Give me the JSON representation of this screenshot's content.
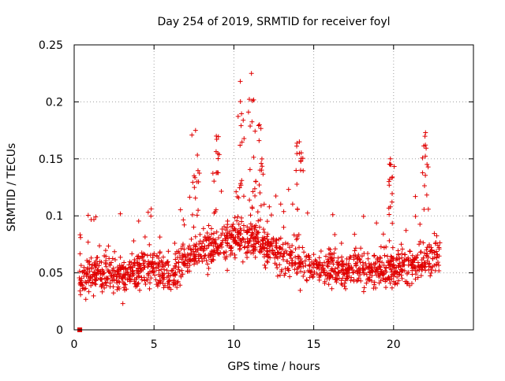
{
  "chart_data": {
    "type": "scatter",
    "title": "Day 254 of 2019, SRMTID for receiver foyl",
    "xlabel": "GPS time / hours",
    "ylabel": "SRMTID / TECUs",
    "xlim": [
      0,
      25
    ],
    "ylim": [
      0,
      0.25
    ],
    "x_ticks": [
      0,
      5,
      10,
      15,
      20
    ],
    "x_tick_labels": [
      "0",
      "5",
      "10",
      "15",
      "20"
    ],
    "y_ticks": [
      0,
      0.05,
      0.1,
      0.15,
      0.2,
      0.25
    ],
    "y_tick_labels": [
      "0",
      "0.05",
      "0.1",
      "0.15",
      "0.2",
      "0.25"
    ],
    "grid": true,
    "marker": "plus",
    "series": [
      {
        "name": "SRMTID",
        "color": "#e00000",
        "x_range_hours": [
          0.3,
          22.9
        ],
        "typical_band": [
          0.02,
          0.09
        ],
        "baseline_by_hour": [
          [
            0.3,
            0.045
          ],
          [
            1,
            0.05
          ],
          [
            2,
            0.052
          ],
          [
            3,
            0.045
          ],
          [
            4,
            0.055
          ],
          [
            5,
            0.055
          ],
          [
            6,
            0.05
          ],
          [
            7,
            0.06
          ],
          [
            8,
            0.07
          ],
          [
            9,
            0.075
          ],
          [
            10,
            0.08
          ],
          [
            11,
            0.08
          ],
          [
            12,
            0.075
          ],
          [
            13,
            0.065
          ],
          [
            14,
            0.06
          ],
          [
            15,
            0.055
          ],
          [
            16,
            0.055
          ],
          [
            17,
            0.05
          ],
          [
            18,
            0.055
          ],
          [
            19,
            0.05
          ],
          [
            20,
            0.055
          ],
          [
            21,
            0.055
          ],
          [
            22,
            0.06
          ],
          [
            22.9,
            0.065
          ]
        ],
        "peaks": [
          {
            "x": 7.6,
            "y": 0.175
          },
          {
            "x": 8.9,
            "y": 0.17
          },
          {
            "x": 10.4,
            "y": 0.218
          },
          {
            "x": 11.1,
            "y": 0.225
          },
          {
            "x": 11.6,
            "y": 0.18
          },
          {
            "x": 14.1,
            "y": 0.165
          },
          {
            "x": 19.8,
            "y": 0.15
          },
          {
            "x": 22.0,
            "y": 0.173
          }
        ],
        "zero_points": [
          {
            "x": 0.35,
            "y": 0.0
          }
        ]
      }
    ]
  }
}
